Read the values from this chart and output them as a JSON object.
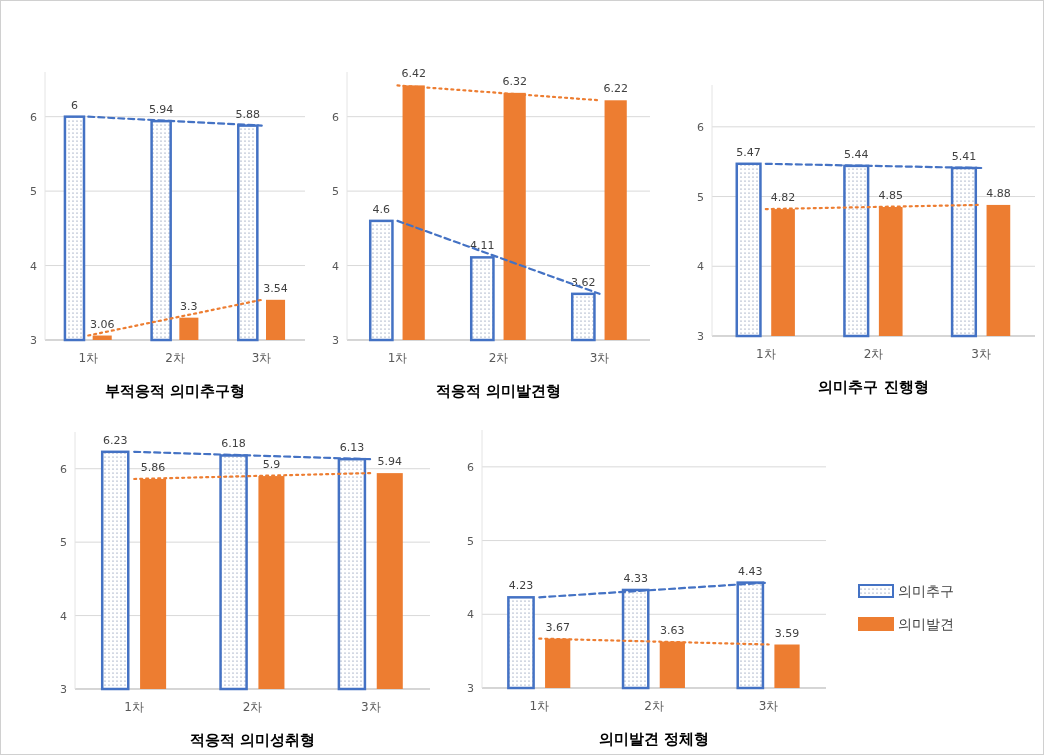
{
  "chart_data": [
    {
      "type": "bar",
      "title": "부적응적 의미추구형",
      "categories": [
        "1차",
        "2차",
        "3차"
      ],
      "ylim": [
        3,
        6.6
      ],
      "yticks": [
        3,
        4,
        5,
        6
      ],
      "grid": "y",
      "series": [
        {
          "color": "#4472c4",
          "values": [
            6,
            5.94,
            5.88
          ],
          "value_labels": [
            "6",
            "5.94",
            "5.88"
          ]
        },
        {
          "color": "#ed7d31",
          "values": [
            3.06,
            3.3,
            3.54
          ],
          "value_labels": [
            "3.06",
            "3.3",
            "3.54"
          ]
        },
        {
          "type": "line",
          "x": [
            "1차",
            "3차"
          ],
          "color": "#4472c4",
          "line_style": "dashed",
          "values": [
            6,
            5.88
          ]
        },
        {
          "type": "line",
          "x": [
            "1차",
            "3차"
          ],
          "color": "#ed7d31",
          "line_style": "dotted",
          "values": [
            3.06,
            3.54
          ]
        }
      ]
    },
    {
      "type": "bar",
      "title": "적응적 의미발견형",
      "categories": [
        "1차",
        "2차",
        "3차"
      ],
      "ylim": [
        3,
        6.6
      ],
      "yticks": [
        3,
        4,
        5,
        6
      ],
      "grid": "y",
      "series": [
        {
          "color": "#4472c4",
          "values": [
            4.6,
            4.11,
            3.62
          ],
          "value_labels": [
            "4.6",
            "4.11",
            "3.62"
          ]
        },
        {
          "color": "#ed7d31",
          "values": [
            6.42,
            6.32,
            6.22
          ],
          "value_labels": [
            "6.42",
            "6.32",
            "6.22"
          ]
        },
        {
          "type": "line",
          "x": [
            "1차",
            "3차"
          ],
          "color": "#4472c4",
          "line_style": "dashed",
          "values": [
            4.6,
            3.62
          ]
        },
        {
          "type": "line",
          "x": [
            "1차",
            "3차"
          ],
          "color": "#ed7d31",
          "line_style": "dotted",
          "values": [
            6.42,
            6.22
          ]
        }
      ]
    },
    {
      "type": "bar",
      "title": "의미추구 진행형",
      "categories": [
        "1차",
        "2차",
        "3차"
      ],
      "ylim": [
        3,
        6.6
      ],
      "yticks": [
        3,
        4,
        5,
        6
      ],
      "grid": "y",
      "series": [
        {
          "color": "#4472c4",
          "values": [
            5.47,
            5.44,
            5.41
          ],
          "value_labels": [
            "5.47",
            "5.44",
            "5.41"
          ]
        },
        {
          "color": "#ed7d31",
          "values": [
            4.82,
            4.85,
            4.88
          ],
          "value_labels": [
            "4.82",
            "4.85",
            "4.88"
          ]
        },
        {
          "type": "line",
          "x": [
            "1차",
            "3차"
          ],
          "color": "#4472c4",
          "line_style": "dashed",
          "values": [
            5.47,
            5.41
          ]
        },
        {
          "type": "line",
          "x": [
            "1차",
            "3차"
          ],
          "color": "#ed7d31",
          "line_style": "dotted",
          "values": [
            4.82,
            4.88
          ]
        }
      ]
    },
    {
      "type": "bar",
      "title": "적응적 의미성취형",
      "categories": [
        "1차",
        "2차",
        "3차"
      ],
      "ylim": [
        3,
        6.5
      ],
      "yticks": [
        3,
        4,
        5,
        6
      ],
      "grid": "y",
      "series": [
        {
          "color": "#4472c4",
          "values": [
            6.23,
            6.18,
            6.13
          ],
          "value_labels": [
            "6.23",
            "6.18",
            "6.13"
          ]
        },
        {
          "color": "#ed7d31",
          "values": [
            5.86,
            5.9,
            5.94
          ],
          "value_labels": [
            "5.86",
            "5.9",
            "5.94"
          ]
        },
        {
          "type": "line",
          "x": [
            "1차",
            "3차"
          ],
          "color": "#4472c4",
          "line_style": "dashed",
          "values": [
            6.23,
            6.13
          ]
        },
        {
          "type": "line",
          "x": [
            "1차",
            "3차"
          ],
          "color": "#ed7d31",
          "line_style": "dotted",
          "values": [
            5.86,
            5.94
          ]
        }
      ]
    },
    {
      "type": "bar",
      "title": "의미발견 정체형",
      "categories": [
        "1차",
        "2차",
        "3차"
      ],
      "ylim": [
        3,
        6.5
      ],
      "yticks": [
        3,
        4,
        5,
        6
      ],
      "grid": "y",
      "legend": "right",
      "series": [
        {
          "name": "의미추구",
          "color": "#4472c4",
          "values": [
            4.23,
            4.33,
            4.43
          ],
          "value_labels": [
            "4.23",
            "4.33",
            "4.43"
          ]
        },
        {
          "name": "의미발견",
          "color": "#ed7d31",
          "values": [
            3.67,
            3.63,
            3.59
          ],
          "value_labels": [
            "3.67",
            "3.63",
            "3.59"
          ]
        },
        {
          "type": "line",
          "x": [
            "1차",
            "3차"
          ],
          "color": "#4472c4",
          "line_style": "dashed",
          "values": [
            4.23,
            4.43
          ]
        },
        {
          "type": "line",
          "x": [
            "1차",
            "3차"
          ],
          "color": "#ed7d31",
          "line_style": "dotted",
          "values": [
            3.67,
            3.59
          ]
        }
      ]
    }
  ]
}
